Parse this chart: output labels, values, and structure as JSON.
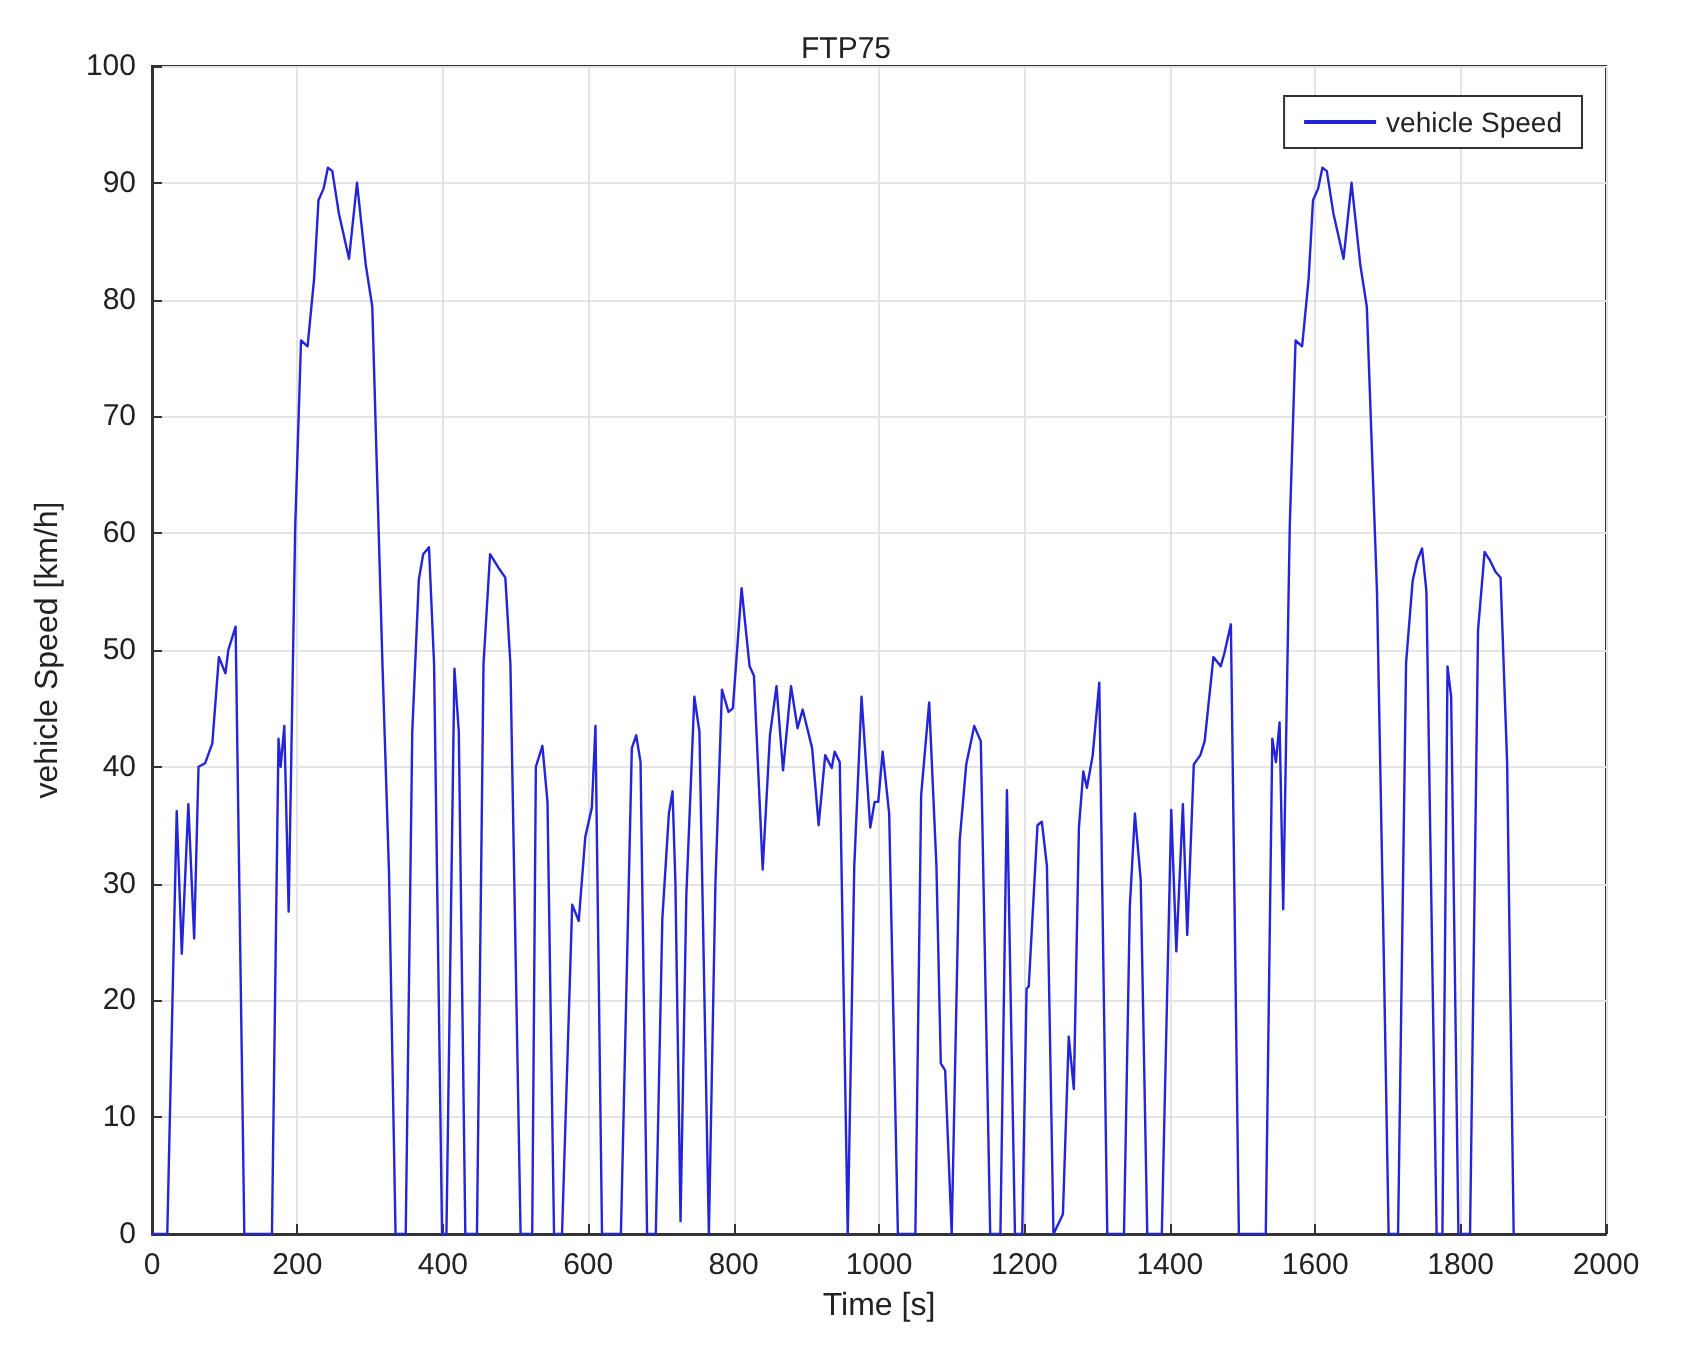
{
  "chart_data": {
    "type": "line",
    "title": "FTP75",
    "xlabel": "Time [s]",
    "ylabel": "vehicle Speed [km/h]",
    "xlim": [
      0,
      2000
    ],
    "xticks": [
      0,
      200,
      400,
      600,
      800,
      1000,
      1200,
      1400,
      1600,
      1800,
      2000
    ],
    "ylim": [
      0,
      100
    ],
    "yticks": [
      0,
      10,
      20,
      30,
      40,
      50,
      60,
      70,
      80,
      90,
      100
    ],
    "grid": true,
    "legend": "top right",
    "marker": "none",
    "line_style": "solid",
    "series": [
      {
        "name": "vehicle Speed",
        "color": "#2424d8",
        "x": [
          0,
          21,
          34,
          41,
          50,
          58,
          64,
          73,
          83,
          92,
          101,
          105,
          115,
          127,
          165,
          174,
          177,
          182,
          188,
          197,
          205,
          214,
          223,
          229,
          236,
          242,
          248,
          257,
          271,
          282,
          294,
          303,
          317,
          326,
          335,
          349,
          358,
          367,
          373,
          381,
          388,
          399,
          405,
          416,
          422,
          431,
          447,
          456,
          465,
          477,
          486,
          493,
          507,
          523,
          528,
          537,
          544,
          553,
          564,
          578,
          587,
          596,
          605,
          610,
          619,
          645,
          660,
          666,
          672,
          681,
          693,
          702,
          711,
          716,
          720,
          727,
          735,
          746,
          753,
          766,
          775,
          784,
          793,
          799,
          811,
          822,
          828,
          840,
          850,
          859,
          868,
          879,
          888,
          895,
          908,
          917,
          926,
          935,
          939,
          946,
          957,
          966,
          976,
          988,
          994,
          999,
          1005,
          1014,
          1026,
          1050,
          1058,
          1069,
          1079,
          1085,
          1091,
          1100,
          1111,
          1120,
          1131,
          1140,
          1153,
          1167,
          1176,
          1187,
          1197,
          1203,
          1206,
          1218,
          1224,
          1231,
          1240,
          1253,
          1261,
          1268,
          1275,
          1281,
          1286,
          1294,
          1303,
          1314,
          1337,
          1345,
          1352,
          1360,
          1369,
          1389,
          1402,
          1409,
          1418,
          1424,
          1433,
          1442,
          1448,
          1460,
          1470,
          1475,
          1484,
          1495,
          1532,
          1541,
          1546,
          1551,
          1556,
          1565,
          1573,
          1582,
          1591,
          1597,
          1604,
          1610,
          1616,
          1625,
          1639,
          1650,
          1662,
          1671,
          1685,
          1694,
          1701,
          1714,
          1725,
          1734,
          1740,
          1747,
          1753,
          1767,
          1775,
          1782,
          1787,
          1797,
          1813,
          1824,
          1833,
          1841,
          1848,
          1855,
          1864,
          1873
        ],
        "values": [
          0,
          0,
          36.2,
          24,
          36.8,
          25.3,
          40,
          40.3,
          42,
          49.4,
          48,
          50,
          52,
          0,
          0,
          42.4,
          40,
          43.5,
          27.6,
          60.6,
          76.5,
          76,
          81.8,
          88.5,
          89.5,
          91.3,
          91,
          87.4,
          83.5,
          90,
          83,
          79.4,
          48.8,
          31,
          0,
          0,
          43,
          56,
          58.2,
          58.8,
          48.8,
          0,
          0,
          48.4,
          43,
          0,
          0,
          48.8,
          58.2,
          57,
          56.2,
          48.8,
          0,
          0,
          40,
          41.8,
          37,
          0,
          0,
          28.2,
          26.8,
          34,
          36.5,
          43.5,
          0,
          0,
          41.6,
          42.7,
          40.4,
          0,
          0,
          27,
          36,
          37.9,
          30,
          1.1,
          29,
          46,
          43,
          0,
          30,
          46.6,
          44.7,
          45,
          55.3,
          48.6,
          47.8,
          31.2,
          42.7,
          46.9,
          39.7,
          46.9,
          43.3,
          44.9,
          41.6,
          35,
          41,
          39.9,
          41.3,
          40.4,
          0,
          31.5,
          46,
          34.8,
          37,
          37,
          41.3,
          36,
          0,
          0,
          37.6,
          45.5,
          31.5,
          14.6,
          14,
          0,
          33.7,
          40.2,
          43.5,
          42.2,
          0,
          0,
          38,
          0,
          0,
          21,
          21.2,
          35,
          35.3,
          31.5,
          0,
          1.7,
          16.9,
          12.4,
          34.8,
          39.6,
          38.2,
          41,
          47.2,
          0,
          0,
          28,
          36,
          30.3,
          0,
          0,
          36.3,
          24.2,
          36.8,
          25.6,
          40.2,
          41,
          42.2,
          49.4,
          48.6,
          49.7,
          52.2,
          0,
          0,
          42.4,
          40.4,
          43.8,
          27.8,
          60.6,
          76.5,
          76,
          81.8,
          88.5,
          89.5,
          91.3,
          91,
          87.4,
          83.5,
          90,
          83,
          79.4,
          55,
          25,
          0,
          0,
          48.9,
          55.9,
          57.6,
          58.7,
          55,
          0,
          0,
          48.6,
          46,
          0,
          0,
          51.7,
          58.4,
          57.6,
          56.7,
          56.2,
          40.4,
          0
        ]
      }
    ]
  }
}
